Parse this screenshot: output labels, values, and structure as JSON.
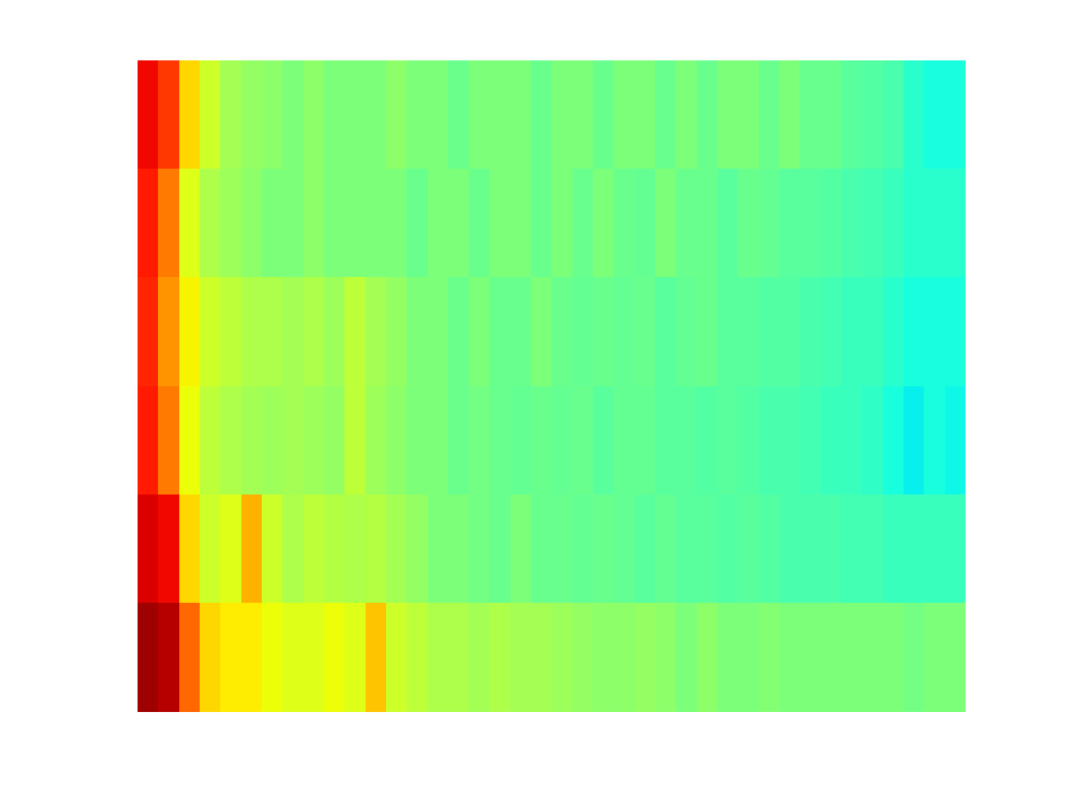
{
  "chart_data": {
    "type": "heatmap",
    "cells": [
      [
        0.9,
        0.85,
        0.68,
        0.6,
        0.55,
        0.53,
        0.52,
        0.5,
        0.52,
        0.5,
        0.5,
        0.5,
        0.52,
        0.5,
        0.5,
        0.48,
        0.5,
        0.5,
        0.5,
        0.48,
        0.5,
        0.5,
        0.48,
        0.5,
        0.5,
        0.48,
        0.5,
        0.48,
        0.5,
        0.5,
        0.48,
        0.5,
        0.48,
        0.48,
        0.46,
        0.45,
        0.44,
        0.4,
        0.38,
        0.38
      ],
      [
        0.88,
        0.78,
        0.62,
        0.56,
        0.54,
        0.52,
        0.5,
        0.5,
        0.52,
        0.5,
        0.5,
        0.5,
        0.5,
        0.48,
        0.5,
        0.5,
        0.48,
        0.5,
        0.5,
        0.48,
        0.5,
        0.48,
        0.5,
        0.48,
        0.47,
        0.5,
        0.48,
        0.48,
        0.46,
        0.48,
        0.47,
        0.46,
        0.46,
        0.45,
        0.44,
        0.43,
        0.42,
        0.4,
        0.4,
        0.4
      ],
      [
        0.87,
        0.75,
        0.65,
        0.6,
        0.58,
        0.56,
        0.56,
        0.55,
        0.56,
        0.54,
        0.58,
        0.55,
        0.53,
        0.5,
        0.5,
        0.48,
        0.5,
        0.48,
        0.48,
        0.5,
        0.48,
        0.47,
        0.48,
        0.47,
        0.48,
        0.46,
        0.47,
        0.48,
        0.46,
        0.46,
        0.45,
        0.45,
        0.44,
        0.43,
        0.42,
        0.42,
        0.4,
        0.38,
        0.38,
        0.38
      ],
      [
        0.88,
        0.78,
        0.64,
        0.58,
        0.56,
        0.55,
        0.54,
        0.55,
        0.54,
        0.53,
        0.58,
        0.54,
        0.52,
        0.5,
        0.5,
        0.48,
        0.49,
        0.48,
        0.47,
        0.48,
        0.47,
        0.48,
        0.46,
        0.47,
        0.47,
        0.46,
        0.46,
        0.45,
        0.46,
        0.45,
        0.44,
        0.44,
        0.43,
        0.42,
        0.42,
        0.41,
        0.38,
        0.36,
        0.38,
        0.37
      ],
      [
        0.92,
        0.9,
        0.68,
        0.6,
        0.62,
        0.72,
        0.6,
        0.56,
        0.58,
        0.57,
        0.56,
        0.57,
        0.55,
        0.53,
        0.5,
        0.5,
        0.49,
        0.48,
        0.5,
        0.48,
        0.48,
        0.47,
        0.48,
        0.47,
        0.46,
        0.47,
        0.46,
        0.46,
        0.45,
        0.46,
        0.45,
        0.44,
        0.44,
        0.44,
        0.43,
        0.43,
        0.42,
        0.42,
        0.42,
        0.42
      ],
      [
        0.97,
        0.95,
        0.8,
        0.68,
        0.66,
        0.66,
        0.64,
        0.62,
        0.62,
        0.64,
        0.62,
        0.7,
        0.6,
        0.58,
        0.56,
        0.56,
        0.55,
        0.56,
        0.55,
        0.55,
        0.54,
        0.53,
        0.52,
        0.52,
        0.53,
        0.52,
        0.5,
        0.52,
        0.5,
        0.5,
        0.51,
        0.5,
        0.5,
        0.5,
        0.5,
        0.5,
        0.5,
        0.49,
        0.5,
        0.5
      ]
    ],
    "color_range": [
      0,
      1
    ],
    "tick_labels": false
  }
}
